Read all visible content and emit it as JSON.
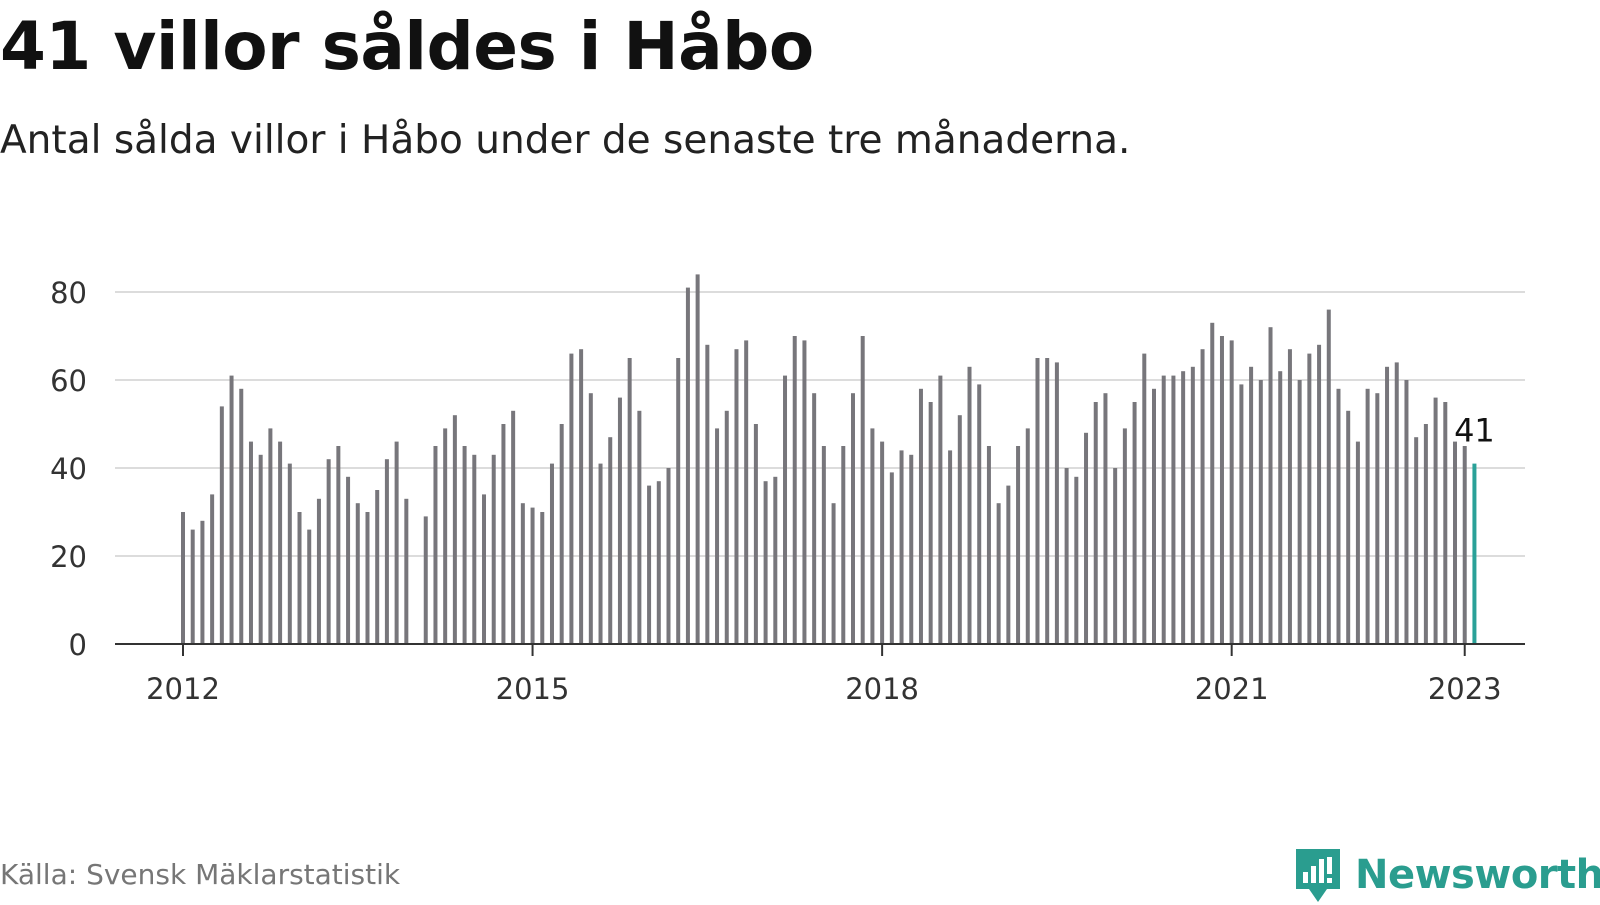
{
  "title": "41 villor såldes i Håbo",
  "subtitle": "Antal sålda villor i Håbo under de senaste tre månaderna.",
  "source": "Källa: Svensk Mäklarstatistik",
  "brand": {
    "name": "Newsworthy",
    "icon": "newsworthy-logo-icon",
    "color": "#2a9d8f"
  },
  "chart_data": {
    "type": "bar",
    "x_start": "2012-01",
    "x_end": "2023-01",
    "x_ticks": [
      "2012",
      "2015",
      "2018",
      "2021",
      "2023"
    ],
    "y_ticks": [
      0,
      20,
      40,
      60,
      80
    ],
    "ylim": [
      0,
      85
    ],
    "grid": true,
    "bar_color": "#77767b",
    "highlight_color": "#2aa198",
    "highlight_label": "41",
    "values": [
      30,
      26,
      28,
      34,
      54,
      61,
      58,
      46,
      43,
      49,
      46,
      41,
      30,
      26,
      33,
      42,
      45,
      38,
      32,
      30,
      35,
      42,
      46,
      33,
      null,
      29,
      45,
      49,
      52,
      45,
      43,
      34,
      43,
      50,
      53,
      32,
      31,
      30,
      41,
      50,
      66,
      67,
      57,
      41,
      47,
      56,
      65,
      53,
      36,
      37,
      40,
      65,
      81,
      84,
      68,
      49,
      53,
      67,
      69,
      50,
      37,
      38,
      61,
      70,
      69,
      57,
      45,
      32,
      45,
      57,
      70,
      49,
      46,
      39,
      44,
      43,
      58,
      55,
      61,
      44,
      52,
      63,
      59,
      45,
      32,
      36,
      45,
      49,
      65,
      65,
      64,
      40,
      38,
      48,
      55,
      57,
      40,
      49,
      55,
      66,
      58,
      61,
      61,
      62,
      63,
      67,
      73,
      70,
      69,
      59,
      63,
      60,
      72,
      62,
      67,
      60,
      66,
      68,
      76,
      58,
      53,
      46,
      58,
      57,
      63,
      64,
      60,
      47,
      50,
      56,
      55,
      46,
      45,
      41
    ]
  }
}
